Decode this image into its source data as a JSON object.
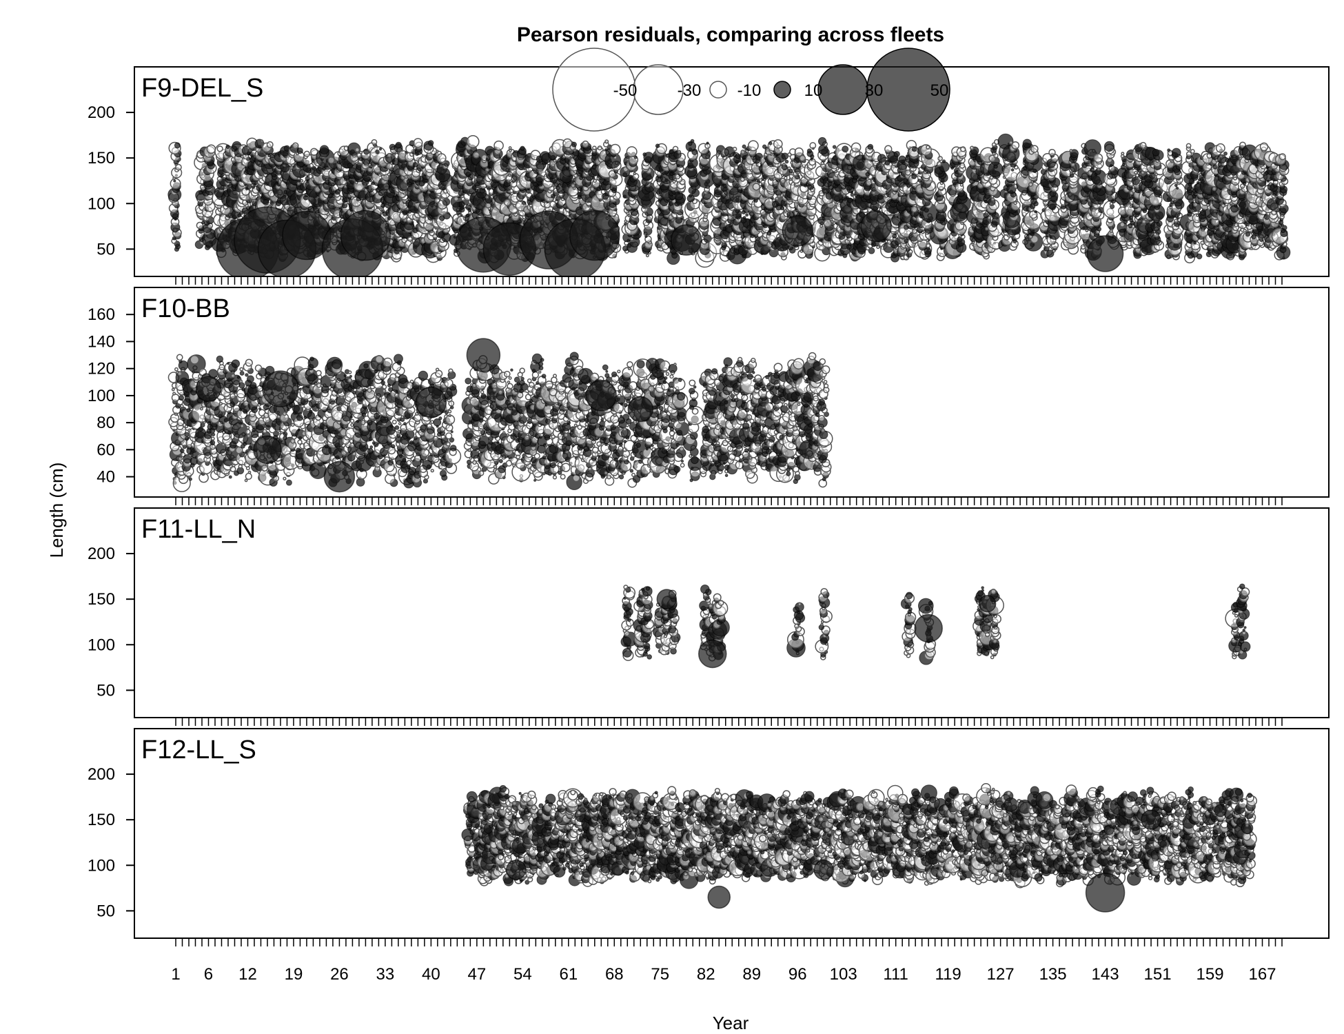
{
  "chart_data": {
    "type": "scatter",
    "title": "Pearson residuals,  comparing across fleets",
    "xlabel": "Year",
    "ylabel": "Length (cm)",
    "x_range": [
      1,
      170
    ],
    "x_tick_labels": [
      "1",
      "6",
      "12",
      "19",
      "26",
      "33",
      "40",
      "47",
      "54",
      "61",
      "68",
      "75",
      "82",
      "89",
      "96",
      "103",
      "111",
      "119",
      "127",
      "135",
      "143",
      "151",
      "159",
      "167"
    ],
    "legend": {
      "placement": "top-center",
      "entries": [
        {
          "label": "-50",
          "value": -50
        },
        {
          "label": "-30",
          "value": -30
        },
        {
          "label": "-10",
          "value": -10
        },
        {
          "label": "10",
          "value": 10
        },
        {
          "label": "30",
          "value": 30
        },
        {
          "label": "50",
          "value": 50
        }
      ]
    },
    "colors": {
      "positive": "#1a1a1a",
      "negative_fill": "#ffffff",
      "negative_stroke": "#555555"
    },
    "panels": [
      {
        "name": "F9-DEL_S",
        "ylim": [
          20,
          250
        ],
        "y_ticks": [
          50,
          100,
          150,
          200
        ],
        "years": [
          1,
          5,
          6,
          8,
          9,
          10,
          11,
          12,
          13,
          14,
          15,
          16,
          17,
          18,
          19,
          20,
          21,
          22,
          23,
          24,
          25,
          26,
          27,
          28,
          29,
          30,
          31,
          32,
          33,
          34,
          35,
          36,
          37,
          38,
          39,
          40,
          41,
          42,
          44,
          45,
          46,
          47,
          48,
          49,
          50,
          51,
          52,
          53,
          54,
          55,
          56,
          57,
          58,
          59,
          60,
          61,
          62,
          63,
          64,
          65,
          66,
          67,
          68,
          70,
          71,
          73,
          75,
          76,
          77,
          78,
          80,
          82,
          84,
          85,
          86,
          87,
          88,
          89,
          90,
          91,
          92,
          93,
          94,
          95,
          96,
          97,
          98,
          100,
          101,
          102,
          103,
          104,
          105,
          106,
          107,
          108,
          109,
          110,
          111,
          112,
          113,
          114,
          115,
          116,
          118,
          120,
          121,
          123,
          124,
          125,
          126,
          128,
          129,
          131,
          132,
          134,
          135,
          137,
          138,
          140,
          141,
          142,
          144,
          146,
          147,
          148,
          149,
          150,
          151,
          153,
          154,
          156,
          157,
          158,
          159,
          160,
          161,
          162,
          163,
          164,
          165,
          166,
          167,
          168,
          169,
          170
        ],
        "length_min": 40,
        "length_max": 170,
        "large_positive": [
          {
            "x": 12,
            "y": 50,
            "r": 45
          },
          {
            "x": 15,
            "y": 60,
            "r": 48
          },
          {
            "x": 18,
            "y": 50,
            "r": 42
          },
          {
            "x": 21,
            "y": 65,
            "r": 35
          },
          {
            "x": 28,
            "y": 50,
            "r": 44
          },
          {
            "x": 30,
            "y": 65,
            "r": 36
          },
          {
            "x": 48,
            "y": 55,
            "r": 40
          },
          {
            "x": 52,
            "y": 50,
            "r": 38
          },
          {
            "x": 58,
            "y": 60,
            "r": 42
          },
          {
            "x": 62,
            "y": 50,
            "r": 44
          },
          {
            "x": 65,
            "y": 65,
            "r": 36
          },
          {
            "x": 79,
            "y": 60,
            "r": 22
          },
          {
            "x": 143,
            "y": 45,
            "r": 26
          },
          {
            "x": 96,
            "y": 70,
            "r": 22
          },
          {
            "x": 108,
            "y": 75,
            "r": 22
          }
        ]
      },
      {
        "name": "F10-BB",
        "ylim": [
          25,
          180
        ],
        "y_ticks": [
          40,
          60,
          80,
          100,
          120,
          140,
          160
        ],
        "years": [
          1,
          2,
          3,
          4,
          5,
          6,
          7,
          8,
          9,
          10,
          11,
          12,
          13,
          14,
          15,
          16,
          17,
          18,
          19,
          20,
          21,
          22,
          23,
          24,
          25,
          26,
          27,
          28,
          29,
          30,
          31,
          32,
          33,
          34,
          35,
          36,
          37,
          38,
          39,
          40,
          41,
          42,
          43,
          46,
          47,
          48,
          49,
          50,
          51,
          52,
          53,
          54,
          55,
          56,
          57,
          58,
          59,
          60,
          61,
          62,
          63,
          64,
          65,
          66,
          67,
          68,
          69,
          70,
          71,
          72,
          73,
          74,
          75,
          76,
          77,
          78,
          80,
          82,
          83,
          84,
          85,
          86,
          87,
          88,
          89,
          90,
          91,
          92,
          93,
          94,
          95,
          96,
          97,
          98,
          99,
          100
        ],
        "length_min": 35,
        "length_max": 130,
        "large_positive": [
          {
            "x": 6,
            "y": 105,
            "r": 18
          },
          {
            "x": 15,
            "y": 60,
            "r": 20
          },
          {
            "x": 17,
            "y": 105,
            "r": 26
          },
          {
            "x": 26,
            "y": 40,
            "r": 22
          },
          {
            "x": 40,
            "y": 95,
            "r": 22
          },
          {
            "x": 48,
            "y": 130,
            "r": 24
          },
          {
            "x": 66,
            "y": 100,
            "r": 22
          },
          {
            "x": 72,
            "y": 90,
            "r": 18
          }
        ]
      },
      {
        "name": "F11-LL_N",
        "ylim": [
          20,
          250
        ],
        "y_ticks": [
          50,
          100,
          150,
          200
        ],
        "years": [
          70,
          72,
          73,
          75,
          76,
          77,
          82,
          83,
          84,
          96,
          100,
          113,
          116,
          124,
          125,
          126,
          163,
          164
        ],
        "length_min": 85,
        "length_max": 165,
        "large_positive": [
          {
            "x": 76,
            "y": 150,
            "r": 14
          },
          {
            "x": 83,
            "y": 90,
            "r": 20
          },
          {
            "x": 116,
            "y": 118,
            "r": 20
          },
          {
            "x": 125,
            "y": 145,
            "r": 12
          }
        ]
      },
      {
        "name": "F12-LL_S",
        "ylim": [
          20,
          250
        ],
        "y_ticks": [
          50,
          100,
          150,
          200
        ],
        "years": [
          46,
          47,
          48,
          49,
          50,
          51,
          52,
          53,
          54,
          55,
          56,
          57,
          58,
          59,
          60,
          61,
          62,
          63,
          64,
          65,
          66,
          67,
          68,
          69,
          70,
          71,
          72,
          73,
          74,
          75,
          76,
          77,
          78,
          79,
          80,
          81,
          82,
          83,
          84,
          85,
          86,
          87,
          88,
          89,
          90,
          91,
          92,
          93,
          94,
          95,
          96,
          97,
          98,
          99,
          100,
          101,
          102,
          103,
          104,
          105,
          106,
          107,
          108,
          109,
          110,
          111,
          112,
          113,
          114,
          115,
          116,
          117,
          118,
          119,
          120,
          121,
          122,
          123,
          124,
          125,
          126,
          127,
          128,
          129,
          130,
          131,
          132,
          133,
          134,
          135,
          136,
          137,
          138,
          139,
          140,
          141,
          142,
          143,
          144,
          145,
          146,
          147,
          148,
          149,
          150,
          151,
          152,
          153,
          154,
          155,
          156,
          157,
          158,
          159,
          160,
          161,
          162,
          163,
          164,
          165
        ],
        "length_min": 80,
        "length_max": 185,
        "large_positive": [
          {
            "x": 143,
            "y": 70,
            "r": 28
          },
          {
            "x": 84,
            "y": 65,
            "r": 16
          },
          {
            "x": 53,
            "y": 95,
            "r": 14
          },
          {
            "x": 100,
            "y": 95,
            "r": 14
          },
          {
            "x": 150,
            "y": 150,
            "r": 14
          }
        ]
      }
    ]
  }
}
